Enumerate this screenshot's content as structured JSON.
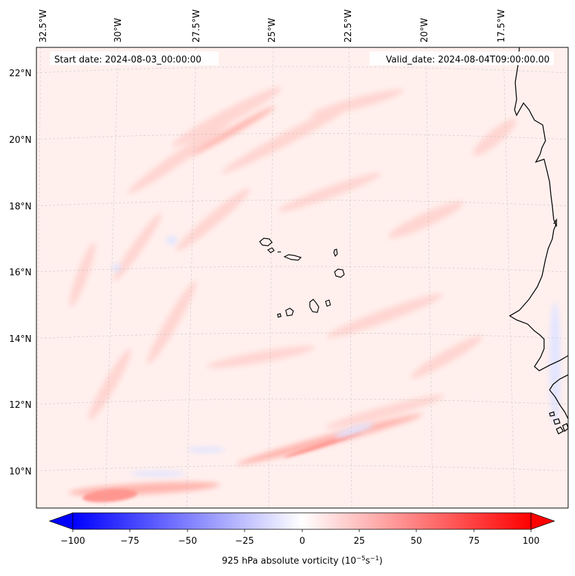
{
  "map": {
    "start_date": "Start date: 2024-08-03_00:00:00",
    "valid_date": "Valid_date: 2024-08-04T09:00:00.00",
    "lon_labels": [
      "32.5°W",
      "30°W",
      "27.5°W",
      "25°W",
      "22.5°W",
      "20°W",
      "17.5°W"
    ],
    "lat_labels": [
      "22°N",
      "20°N",
      "18°N",
      "16°N",
      "14°N",
      "12°N",
      "10°N"
    ],
    "feature": "Cabo Verde islands and West African coastline",
    "colors": {
      "positive": "#ff0000",
      "negative": "#0000ff",
      "neutral": "#ffffff",
      "coast": "#000000"
    }
  },
  "colorbar": {
    "label": "925 hPa absolute vorticity (10",
    "label_exp1": "−5",
    "label_mid": "s",
    "label_exp2": "−1",
    "label_end": ")",
    "min": -100,
    "max": 100,
    "ticks": [
      "−100",
      "−75",
      "−50",
      "−25",
      "0",
      "25",
      "50",
      "75",
      "100"
    ]
  }
}
